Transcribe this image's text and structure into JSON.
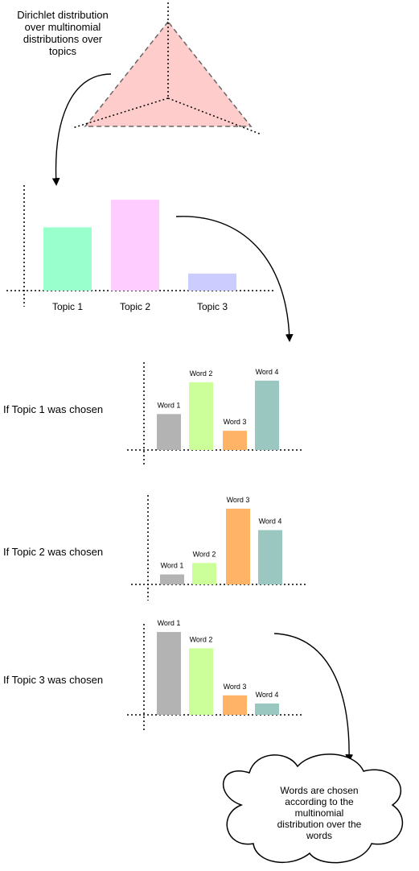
{
  "dirichlet": {
    "label_lines": [
      "Dirichlet distribution",
      "over multinomial",
      "distributions over",
      "topics"
    ],
    "fill": "#ffcccc",
    "stroke": "#666666"
  },
  "outcome_note": {
    "lines": [
      "Words are chosen",
      "according to the",
      "multinomial",
      "distribution over the",
      "words"
    ]
  },
  "colors": {
    "topic_1": "#99ffcc",
    "topic_2": "#ffccff",
    "topic_3": "#ccccff",
    "word_1": "#b3b3b3",
    "word_2": "#ccff99",
    "word_3": "#ffb366",
    "word_4": "#9ac7bf"
  },
  "chart_data": [
    {
      "type": "bar",
      "id": "topics",
      "side_label": "",
      "categories": [
        "Topic 1",
        "Topic 2",
        "Topic 3"
      ],
      "values": [
        78,
        112,
        21
      ],
      "ylim": [
        0,
        130
      ],
      "grid": false
    },
    {
      "type": "bar",
      "id": "topic1_words",
      "side_label": "If Topic 1 was chosen",
      "categories": [
        "Word 1",
        "Word 2",
        "Word 3",
        "Word 4"
      ],
      "values": [
        43,
        81,
        23,
        83
      ],
      "ylim": [
        0,
        105
      ],
      "grid": false
    },
    {
      "type": "bar",
      "id": "topic2_words",
      "side_label": "If Topic 2 was chosen",
      "categories": [
        "Word 1",
        "Word 2",
        "Word 3",
        "Word 4"
      ],
      "values": [
        14,
        30,
        106,
        76
      ],
      "ylim": [
        0,
        125
      ],
      "grid": false
    },
    {
      "type": "bar",
      "id": "topic3_words",
      "side_label": "If Topic 3 was chosen",
      "categories": [
        "Word 1",
        "Word 2",
        "Word 3",
        "Word 4"
      ],
      "values": [
        102,
        82,
        24,
        14
      ],
      "ylim": [
        0,
        112
      ],
      "grid": false
    }
  ]
}
